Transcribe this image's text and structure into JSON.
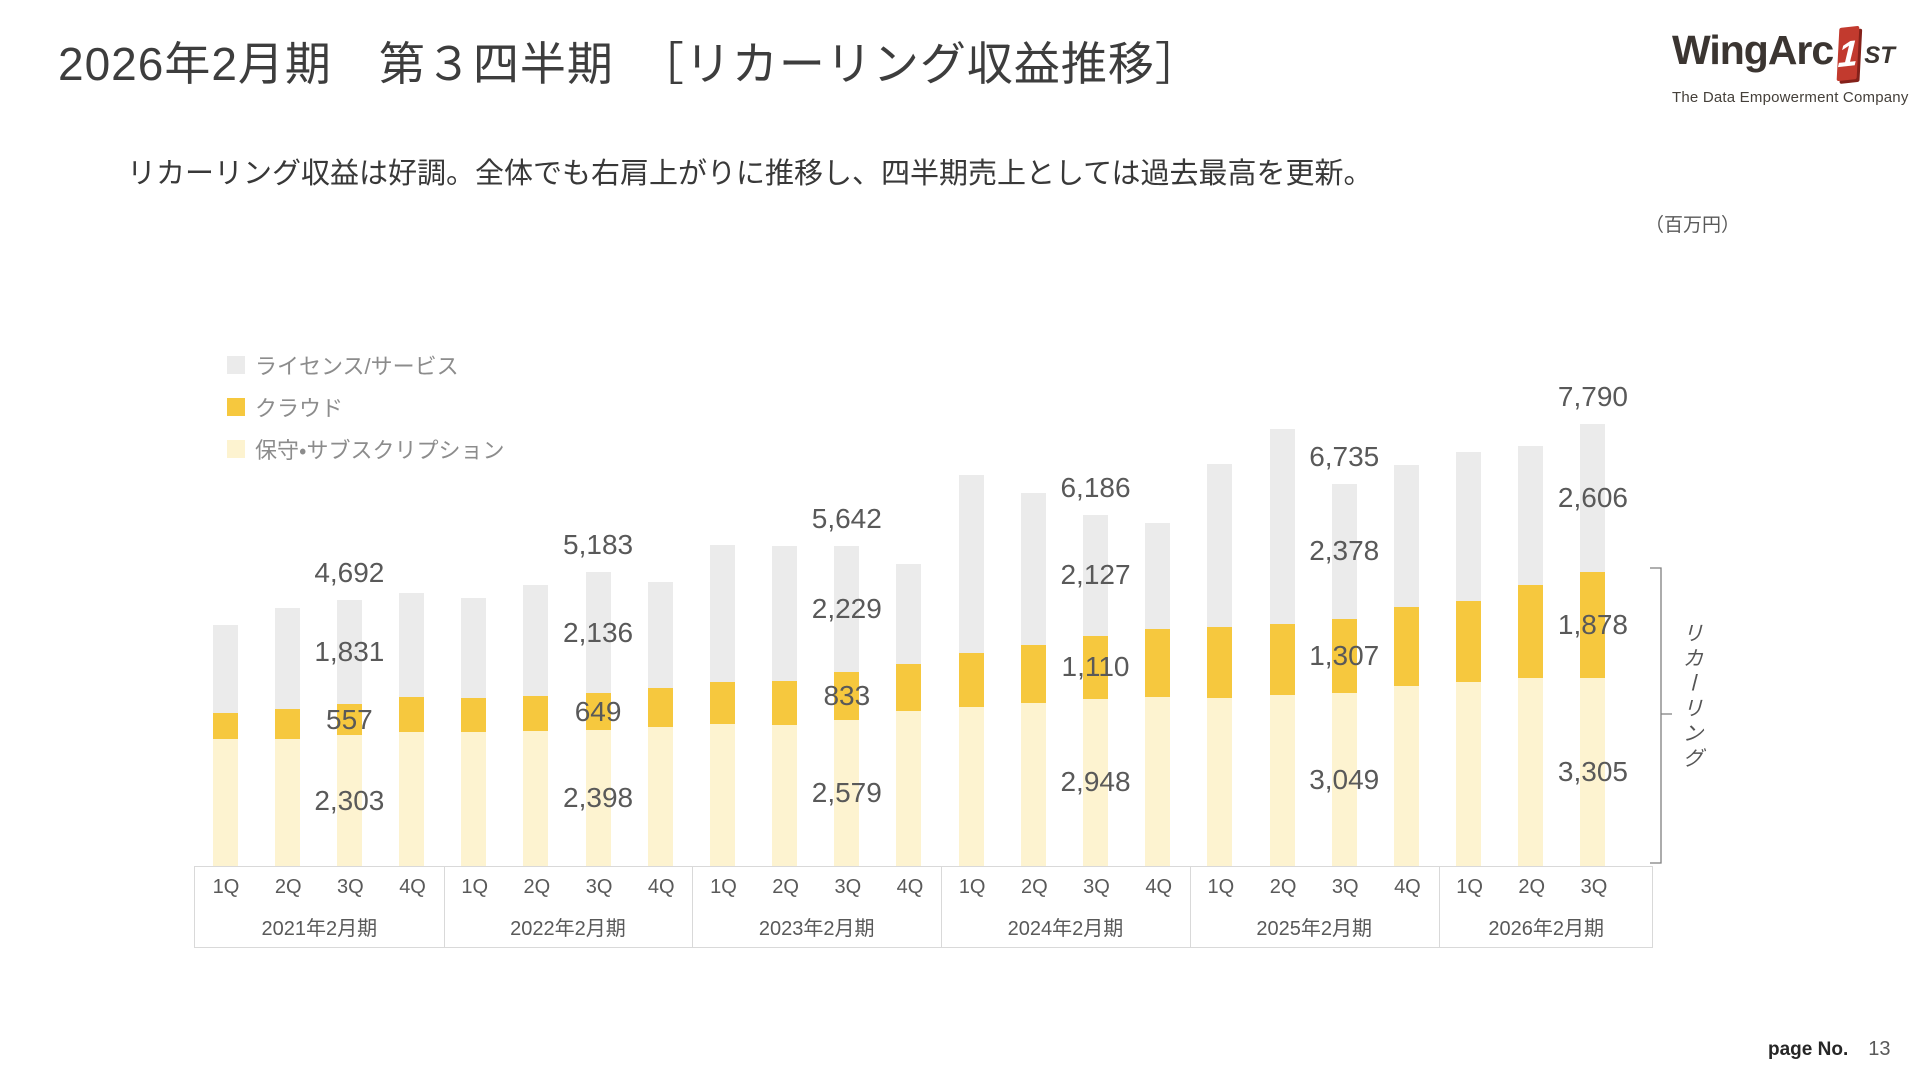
{
  "slide": {
    "title": "2026年2月期　第３四半期　［リカーリング収益推移］",
    "subtitle": "リカーリング収益は好調。全体でも右肩上がりに推移し、四半期売上としては過去最高を更新。",
    "unit_label": "（百万円）",
    "page_label": "page No.",
    "page_number": "13"
  },
  "logo": {
    "brand": "WingArc",
    "one": "1",
    "st": "ST",
    "tagline": "The Data Empowerment Company"
  },
  "bracket_label": "リカーリング",
  "chart_data": {
    "type": "bar",
    "stacked": true,
    "title": "リカーリング収益推移",
    "unit": "百万円",
    "ylim": [
      0,
      8200
    ],
    "grid": false,
    "legend_position": "upper-left",
    "series": [
      {
        "name": "保守・サブスクリプション",
        "color": "#FDF3D0",
        "values": [
          2240,
          2240,
          2303,
          2360,
          2360,
          2380,
          2398,
          2450,
          2505,
          2490,
          2579,
          2730,
          2800,
          2870,
          2948,
          2980,
          2960,
          3010,
          3049,
          3170,
          3240,
          3310,
          3305
        ]
      },
      {
        "name": "クラウド",
        "color": "#F6C83E",
        "values": [
          460,
          530,
          557,
          620,
          600,
          620,
          649,
          690,
          745,
          765,
          833,
          835,
          950,
          1020,
          1110,
          1200,
          1250,
          1250,
          1307,
          1390,
          1430,
          1640,
          1878
        ]
      },
      {
        "name": "ライセンス/サービス",
        "color": "#EBEBEB",
        "values": [
          1540,
          1775,
          1831,
          1830,
          1760,
          1950,
          2136,
          1870,
          2400,
          2380,
          2229,
          1760,
          3140,
          2680,
          2127,
          1870,
          2870,
          3450,
          2378,
          2500,
          2630,
          2450,
          2606
        ]
      }
    ],
    "groups": [
      {
        "label": "2021年2月期",
        "quarters": [
          "1Q",
          "2Q",
          "3Q",
          "4Q"
        ]
      },
      {
        "label": "2022年2月期",
        "quarters": [
          "1Q",
          "2Q",
          "3Q",
          "4Q"
        ]
      },
      {
        "label": "2023年2月期",
        "quarters": [
          "1Q",
          "2Q",
          "3Q",
          "4Q"
        ]
      },
      {
        "label": "2024年2月期",
        "quarters": [
          "1Q",
          "2Q",
          "3Q",
          "4Q"
        ]
      },
      {
        "label": "2025年2月期",
        "quarters": [
          "1Q",
          "2Q",
          "3Q",
          "4Q"
        ]
      },
      {
        "label": "2026年2月期",
        "quarters": [
          "1Q",
          "2Q",
          "3Q"
        ]
      }
    ],
    "annotated_bars": [
      {
        "index": 2,
        "group": "2021年2月期",
        "quarter": "3Q",
        "total": "4,692",
        "license_service": "1,831",
        "cloud": "557",
        "maintenance_subscription": "2,303"
      },
      {
        "index": 6,
        "group": "2022年2月期",
        "quarter": "3Q",
        "total": "5,183",
        "license_service": "2,136",
        "cloud": "649",
        "maintenance_subscription": "2,398"
      },
      {
        "index": 10,
        "group": "2023年2月期",
        "quarter": "3Q",
        "total": "5,642",
        "license_service": "2,229",
        "cloud": "833",
        "maintenance_subscription": "2,579"
      },
      {
        "index": 14,
        "group": "2024年2月期",
        "quarter": "3Q",
        "total": "6,186",
        "license_service": "2,127",
        "cloud": "1,110",
        "maintenance_subscription": "2,948"
      },
      {
        "index": 18,
        "group": "2025年2月期",
        "quarter": "3Q",
        "total": "6,735",
        "license_service": "2,378",
        "cloud": "1,307",
        "maintenance_subscription": "3,049"
      },
      {
        "index": 22,
        "group": "2026年2月期",
        "quarter": "3Q",
        "total": "7,790",
        "license_service": "2,606",
        "cloud": "1,878",
        "maintenance_subscription": "3,305"
      }
    ]
  }
}
